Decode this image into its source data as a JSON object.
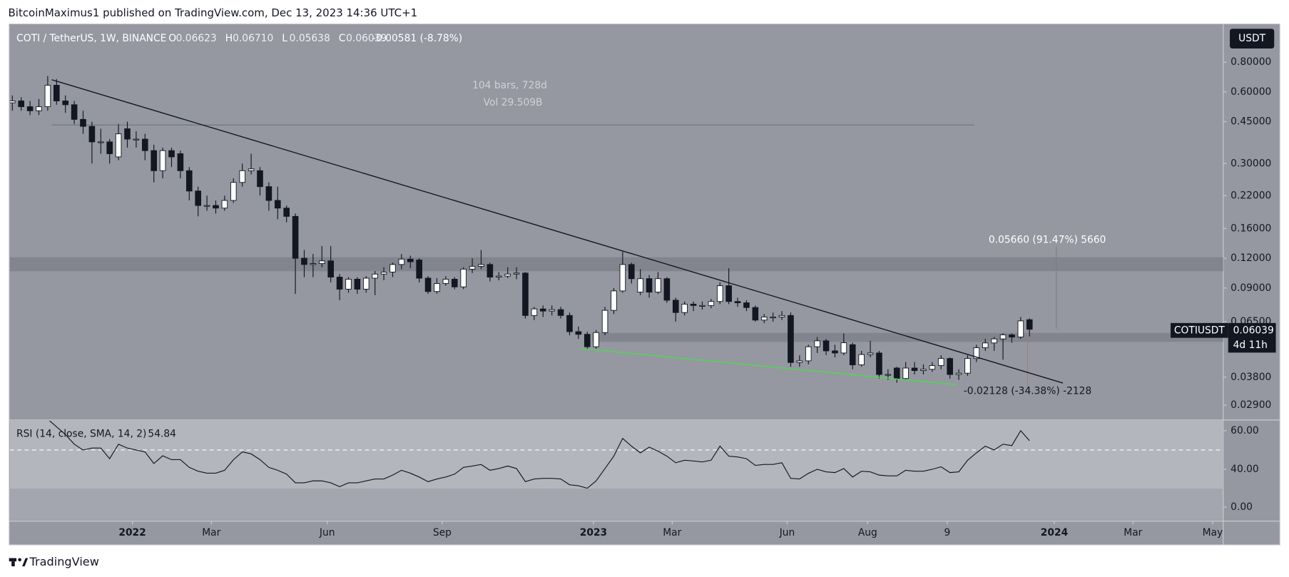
{
  "header": {
    "title": "BitcoinMaximus1 published on TradingView.com, Dec 13, 2023 14:36 UTC+1"
  },
  "footer": {
    "brand": "TradingView"
  },
  "legend": {
    "symbol": "COTI / TetherUS, 1W, BINANCE",
    "fields": [
      {
        "key": "O",
        "value": "0.06623"
      },
      {
        "key": "H",
        "value": "0.06710"
      },
      {
        "key": "L",
        "value": "0.05638"
      },
      {
        "key": "C",
        "value": "0.06039"
      }
    ],
    "change": "-0.00581 (-8.78%)"
  },
  "currency_button": "USDT",
  "price_label": {
    "symbol": "COTIUSDT",
    "countdown": "4d 11h"
  },
  "chart_data": {
    "type": "candlestick",
    "log_scale": true,
    "up_color": "#ffffff",
    "down_color": "#131722",
    "annotations": [
      "104 bars, 728d",
      "Vol 29.509B",
      "0.05660 (91.47%) 5660",
      "-0.02128 (-34.38%) -2128"
    ],
    "xlim": [
      -0.28,
      136.9
    ],
    "xticks": [
      {
        "value": 13.57,
        "label": "2022"
      },
      {
        "value": 22.5,
        "label": "Mar"
      },
      {
        "value": 35.6,
        "label": "Jun"
      },
      {
        "value": 48.6,
        "label": "Sep"
      },
      {
        "value": 65.7,
        "label": "2023"
      },
      {
        "value": 74.6,
        "label": "Mar"
      },
      {
        "value": 87.6,
        "label": "Jun"
      },
      {
        "value": 96.7,
        "label": "Aug"
      },
      {
        "value": 105.7,
        "label": "9"
      },
      {
        "value": 117.8,
        "label": "2024"
      },
      {
        "value": 126.7,
        "label": "Mar"
      },
      {
        "value": 135.7,
        "label": "May"
      }
    ],
    "ylim": [
      0.0253,
      1.15
    ],
    "yticks": [
      {
        "value": 0.8,
        "label": "0.80000"
      },
      {
        "value": 0.6,
        "label": "0.60000"
      },
      {
        "value": 0.45,
        "label": "0.45000"
      },
      {
        "value": 0.3,
        "label": "0.30000"
      },
      {
        "value": 0.22,
        "label": "0.22000"
      },
      {
        "value": 0.16,
        "label": "0.16000"
      },
      {
        "value": 0.12,
        "label": "0.12000"
      },
      {
        "value": 0.09,
        "label": "0.09000"
      },
      {
        "value": 0.065,
        "label": "0.06500"
      },
      {
        "value": 0.038,
        "label": "0.03800"
      },
      {
        "value": 0.029,
        "label": "0.02900"
      }
    ],
    "open": [
      0.54,
      0.55,
      0.52,
      0.5,
      0.52,
      0.64,
      0.55,
      0.53,
      0.46,
      0.43,
      0.37,
      0.37,
      0.32,
      0.42,
      0.38,
      0.38,
      0.34,
      0.28,
      0.34,
      0.33,
      0.28,
      0.23,
      0.2,
      0.2,
      0.195,
      0.21,
      0.25,
      0.28,
      0.28,
      0.24,
      0.21,
      0.195,
      0.18,
      0.12,
      0.113,
      0.114,
      0.117,
      0.1,
      0.089,
      0.098,
      0.089,
      0.099,
      0.103,
      0.105,
      0.113,
      0.119,
      0.118,
      0.099,
      0.087,
      0.094,
      0.098,
      0.091,
      0.108,
      0.111,
      0.113,
      0.1,
      0.101,
      0.103,
      0.104,
      0.069,
      0.0735,
      0.072,
      0.073,
      0.069,
      0.059,
      0.0575,
      0.051,
      0.0585,
      0.0725,
      0.0875,
      0.113,
      0.0865,
      0.0985,
      0.0865,
      0.0985,
      0.08,
      0.071,
      0.077,
      0.076,
      0.076,
      0.079,
      0.092,
      0.079,
      0.078,
      0.0745,
      0.066,
      0.068,
      0.068,
      0.069,
      0.0438,
      0.0445,
      0.051,
      0.054,
      0.049,
      0.048,
      0.052,
      0.0428,
      0.0473,
      0.048,
      0.039,
      0.0415,
      0.0375,
      0.0415,
      0.0405,
      0.041,
      0.0425,
      0.0455,
      0.039,
      0.0395,
      0.0455,
      0.0505,
      0.0529,
      0.055,
      0.0572,
      0.056,
      0.06623
    ],
    "high": [
      0.58,
      0.57,
      0.55,
      0.56,
      0.7,
      0.68,
      0.58,
      0.55,
      0.5,
      0.45,
      0.42,
      0.38,
      0.44,
      0.45,
      0.41,
      0.4,
      0.36,
      0.35,
      0.35,
      0.34,
      0.29,
      0.24,
      0.22,
      0.21,
      0.22,
      0.26,
      0.3,
      0.33,
      0.29,
      0.25,
      0.24,
      0.2,
      0.185,
      0.13,
      0.125,
      0.135,
      0.135,
      0.103,
      0.1,
      0.1,
      0.101,
      0.106,
      0.11,
      0.115,
      0.125,
      0.123,
      0.12,
      0.101,
      0.099,
      0.101,
      0.1,
      0.11,
      0.12,
      0.13,
      0.115,
      0.105,
      0.11,
      0.11,
      0.105,
      0.075,
      0.076,
      0.076,
      0.075,
      0.071,
      0.062,
      0.059,
      0.06,
      0.075,
      0.09,
      0.128,
      0.115,
      0.108,
      0.102,
      0.105,
      0.1,
      0.082,
      0.079,
      0.079,
      0.079,
      0.081,
      0.095,
      0.109,
      0.082,
      0.08,
      0.076,
      0.07,
      0.071,
      0.072,
      0.071,
      0.047,
      0.052,
      0.056,
      0.055,
      0.052,
      0.058,
      0.053,
      0.049,
      0.054,
      0.049,
      0.041,
      0.042,
      0.044,
      0.044,
      0.043,
      0.044,
      0.047,
      0.046,
      0.041,
      0.047,
      0.052,
      0.055,
      0.056,
      0.058,
      0.058,
      0.068,
      0.0671
    ],
    "low": [
      0.5,
      0.5,
      0.48,
      0.48,
      0.5,
      0.53,
      0.49,
      0.44,
      0.4,
      0.3,
      0.33,
      0.3,
      0.31,
      0.35,
      0.35,
      0.31,
      0.25,
      0.26,
      0.29,
      0.26,
      0.21,
      0.18,
      0.19,
      0.185,
      0.19,
      0.205,
      0.24,
      0.27,
      0.22,
      0.19,
      0.175,
      0.17,
      0.085,
      0.1,
      0.1,
      0.11,
      0.095,
      0.08,
      0.086,
      0.085,
      0.086,
      0.084,
      0.097,
      0.1,
      0.108,
      0.109,
      0.095,
      0.085,
      0.085,
      0.092,
      0.089,
      0.089,
      0.104,
      0.108,
      0.096,
      0.097,
      0.099,
      0.098,
      0.067,
      0.066,
      0.068,
      0.069,
      0.067,
      0.057,
      0.055,
      0.0495,
      0.05,
      0.057,
      0.07,
      0.086,
      0.094,
      0.084,
      0.082,
      0.085,
      0.078,
      0.065,
      0.069,
      0.072,
      0.073,
      0.074,
      0.077,
      0.077,
      0.075,
      0.072,
      0.065,
      0.064,
      0.065,
      0.066,
      0.042,
      0.042,
      0.043,
      0.048,
      0.047,
      0.046,
      0.047,
      0.041,
      0.042,
      0.046,
      0.0375,
      0.037,
      0.036,
      0.037,
      0.039,
      0.039,
      0.04,
      0.041,
      0.0375,
      0.037,
      0.0385,
      0.044,
      0.049,
      0.049,
      0.045,
      0.053,
      0.055,
      0.05638
    ],
    "close": [
      0.55,
      0.52,
      0.5,
      0.52,
      0.64,
      0.55,
      0.53,
      0.46,
      0.43,
      0.37,
      0.37,
      0.33,
      0.4,
      0.38,
      0.38,
      0.34,
      0.28,
      0.34,
      0.32,
      0.28,
      0.23,
      0.2,
      0.2,
      0.195,
      0.21,
      0.25,
      0.28,
      0.285,
      0.24,
      0.21,
      0.195,
      0.18,
      0.12,
      0.113,
      0.114,
      0.117,
      0.1,
      0.089,
      0.098,
      0.089,
      0.099,
      0.103,
      0.105,
      0.113,
      0.119,
      0.116,
      0.099,
      0.087,
      0.094,
      0.098,
      0.091,
      0.108,
      0.111,
      0.113,
      0.1,
      0.101,
      0.103,
      0.104,
      0.069,
      0.0735,
      0.072,
      0.073,
      0.069,
      0.059,
      0.0575,
      0.051,
      0.0585,
      0.0725,
      0.0875,
      0.113,
      0.0985,
      0.0985,
      0.0865,
      0.0985,
      0.08,
      0.071,
      0.077,
      0.076,
      0.076,
      0.079,
      0.092,
      0.079,
      0.078,
      0.0745,
      0.066,
      0.068,
      0.068,
      0.069,
      0.0438,
      0.0445,
      0.051,
      0.054,
      0.049,
      0.048,
      0.053,
      0.0428,
      0.0473,
      0.048,
      0.039,
      0.039,
      0.0375,
      0.0415,
      0.0405,
      0.041,
      0.0425,
      0.0455,
      0.039,
      0.0395,
      0.0455,
      0.0505,
      0.0529,
      0.055,
      0.0572,
      0.056,
      0.0655,
      0.06039
    ],
    "rsi": {
      "title": "RSI (14, close, SMA, 14, 2)",
      "last": 54.84,
      "color": "#131722",
      "ylim": [
        13.6,
        65.1
      ],
      "yticks": [
        {
          "value": 60,
          "label": "60.00"
        },
        {
          "value": 40,
          "label": "40.00"
        },
        {
          "value": 0,
          "label": "0.00"
        }
      ],
      "band": [
        30,
        70
      ],
      "midline": 50,
      "values": [
        null,
        null,
        null,
        null,
        66,
        62,
        58,
        53,
        50,
        51,
        51,
        45.5,
        53,
        51,
        50,
        49,
        43,
        47,
        45,
        45,
        41,
        39,
        38,
        38,
        39.5,
        45,
        49,
        48,
        45,
        41,
        39.5,
        37.5,
        33,
        33,
        34,
        34,
        33,
        31,
        33,
        33,
        34,
        35,
        35,
        37,
        39.5,
        38,
        36,
        33.6,
        35,
        36,
        37.5,
        41,
        41.7,
        42.5,
        39.5,
        40.4,
        41.7,
        40.4,
        33.6,
        35,
        35.3,
        35.3,
        35,
        32,
        31.5,
        30.2,
        34,
        40.4,
        46.8,
        56,
        52,
        48.5,
        51.5,
        49.4,
        46.8,
        43.4,
        44.7,
        44.3,
        43.8,
        44.7,
        52,
        46.8,
        46.4,
        45.5,
        42,
        42.5,
        42.5,
        43.4,
        35.3,
        35,
        37.9,
        40,
        38.7,
        38.3,
        40.4,
        36,
        39,
        38.7,
        37,
        36.6,
        36.6,
        39.5,
        39,
        39,
        40,
        41.3,
        38.3,
        38.7,
        44.7,
        48.5,
        52,
        50,
        53,
        52.3,
        60,
        54.84
      ]
    }
  }
}
